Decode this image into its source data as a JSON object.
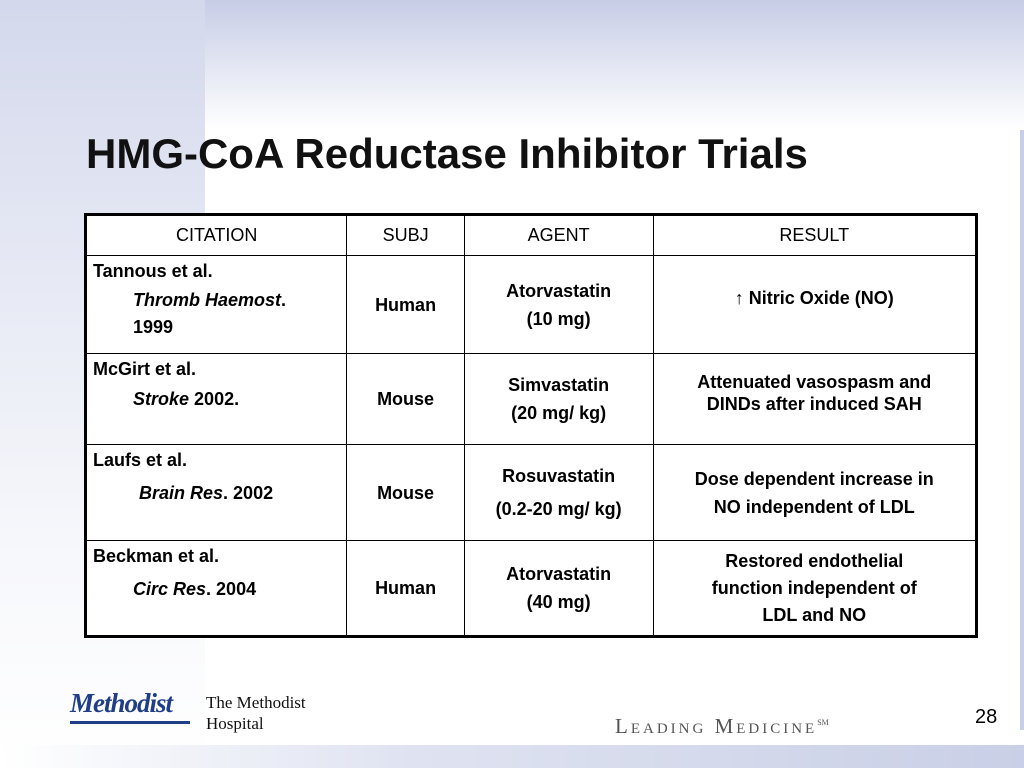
{
  "slide": {
    "title": "HMG-CoA Reductase Inhibitor Trials",
    "page_number": "28"
  },
  "table": {
    "headers": [
      "CITATION",
      "SUBJ",
      "AGENT",
      "RESULT"
    ],
    "rows": [
      {
        "authors": "Tannous et al.",
        "journal": "Thromb Haemost",
        "journal_suffix": ".",
        "year": "1999",
        "subject": "Human",
        "agent_line1": "Atorvastatin",
        "agent_line2": "(10 mg)",
        "result": "↑ Nitric Oxide (NO)"
      },
      {
        "authors": "McGirt et al.",
        "journal": "Stroke",
        "year": "2002.",
        "subject": "Mouse",
        "agent_line1": "Simvastatin",
        "agent_line2": "(20 mg/ kg)",
        "result_line1": "Attenuated vasospasm and",
        "result_line2": "DINDs after induced SAH"
      },
      {
        "authors": "Laufs et al.",
        "journal": "Brain Res",
        "year": ". 2002",
        "subject": "Mouse",
        "agent_line1": "Rosuvastatin",
        "agent_line2": "(0.2-20 mg/ kg)",
        "result_line1": "Dose dependent increase in",
        "result_line2": "NO independent of LDL"
      },
      {
        "authors": "Beckman et al.",
        "journal": "Circ Res",
        "year": ". 2004",
        "subject": "Human",
        "agent_line1": "Atorvastatin",
        "agent_line2": "(40 mg)",
        "result_line1": "Restored endothelial",
        "result_line2": "function independent of",
        "result_line3": "LDL and NO"
      }
    ]
  },
  "footer": {
    "logo_mark": "Methodist",
    "logo_name_line1": "The Methodist",
    "logo_name_line2": "Hospital",
    "tagline": "Leading Medicine",
    "tagline_mark": "SM"
  },
  "colors": {
    "brand_blue": "#1f3e87",
    "background_tint": "#d3d8ec"
  }
}
